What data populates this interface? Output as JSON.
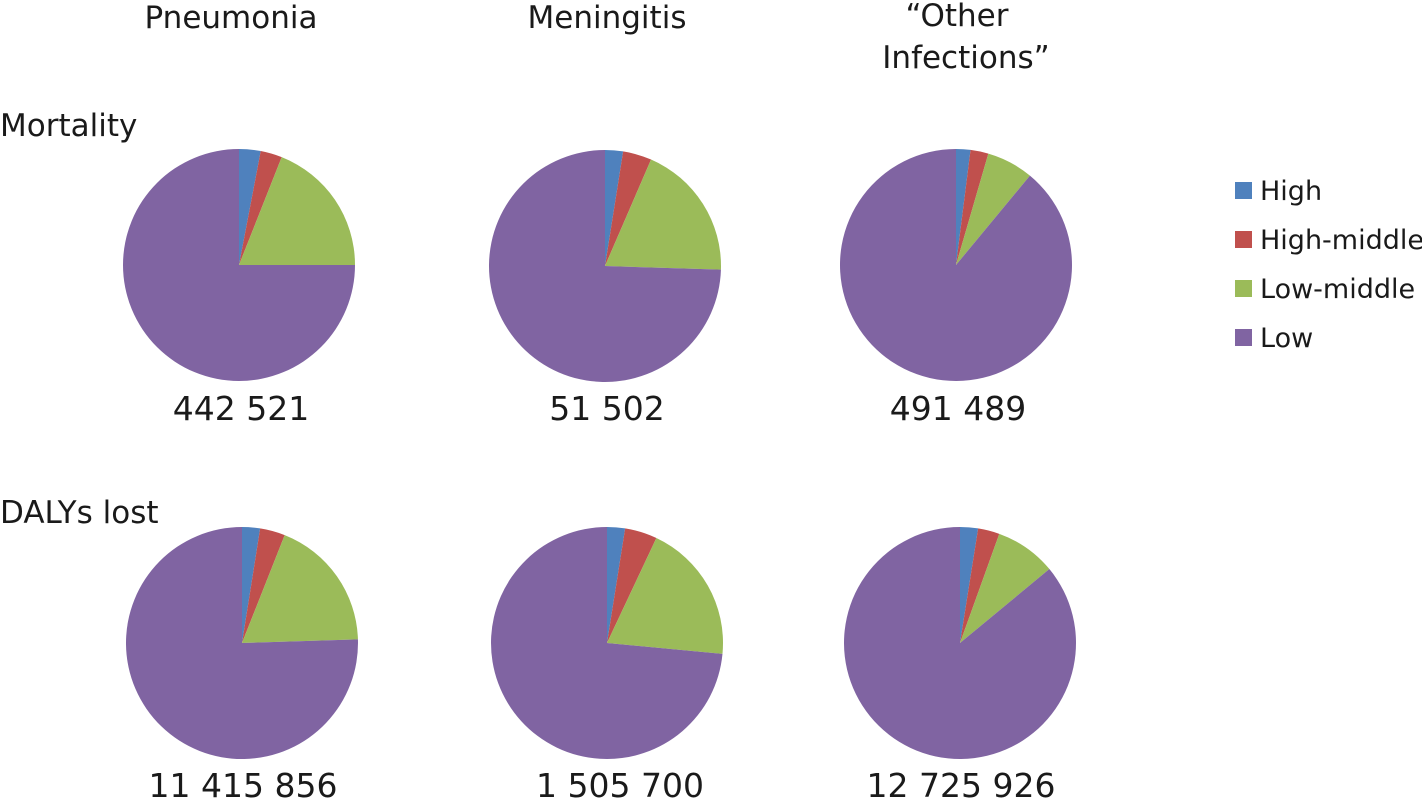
{
  "chart_data": {
    "type": "pie",
    "categories": [
      "High",
      "High-middle",
      "Low-middle",
      "Low"
    ],
    "colors": [
      "#4f81bd",
      "#c0504d",
      "#9bbb59",
      "#8064a2"
    ],
    "legend_position": "right",
    "columns": [
      "Pneumonia",
      "Meningitis",
      "“Other Infections”"
    ],
    "column_title_lines": [
      [
        "Pneumonia"
      ],
      [
        "Meningitis"
      ],
      [
        "“Other",
        "Infections”"
      ]
    ],
    "rows": [
      "Mortality",
      "DALYs lost"
    ],
    "charts": [
      {
        "row": "Mortality",
        "column": "Pneumonia",
        "total": "442 521",
        "shares": [
          0.03,
          0.03,
          0.19,
          0.75
        ]
      },
      {
        "row": "Mortality",
        "column": "Meningitis",
        "total": "51 502",
        "shares": [
          0.025,
          0.04,
          0.19,
          0.745
        ]
      },
      {
        "row": "Mortality",
        "column": "“Other Infections”",
        "total": "491 489",
        "shares": [
          0.02,
          0.025,
          0.065,
          0.89
        ]
      },
      {
        "row": "DALYs lost",
        "column": "Pneumonia",
        "total": "11 415 856",
        "shares": [
          0.025,
          0.035,
          0.185,
          0.755
        ]
      },
      {
        "row": "DALYs lost",
        "column": "Meningitis",
        "total": "1 505 700",
        "shares": [
          0.025,
          0.045,
          0.195,
          0.735
        ]
      },
      {
        "row": "DALYs lost",
        "column": "“Other Infections”",
        "total": "12 725 926",
        "shares": [
          0.025,
          0.03,
          0.085,
          0.86
        ]
      }
    ]
  }
}
